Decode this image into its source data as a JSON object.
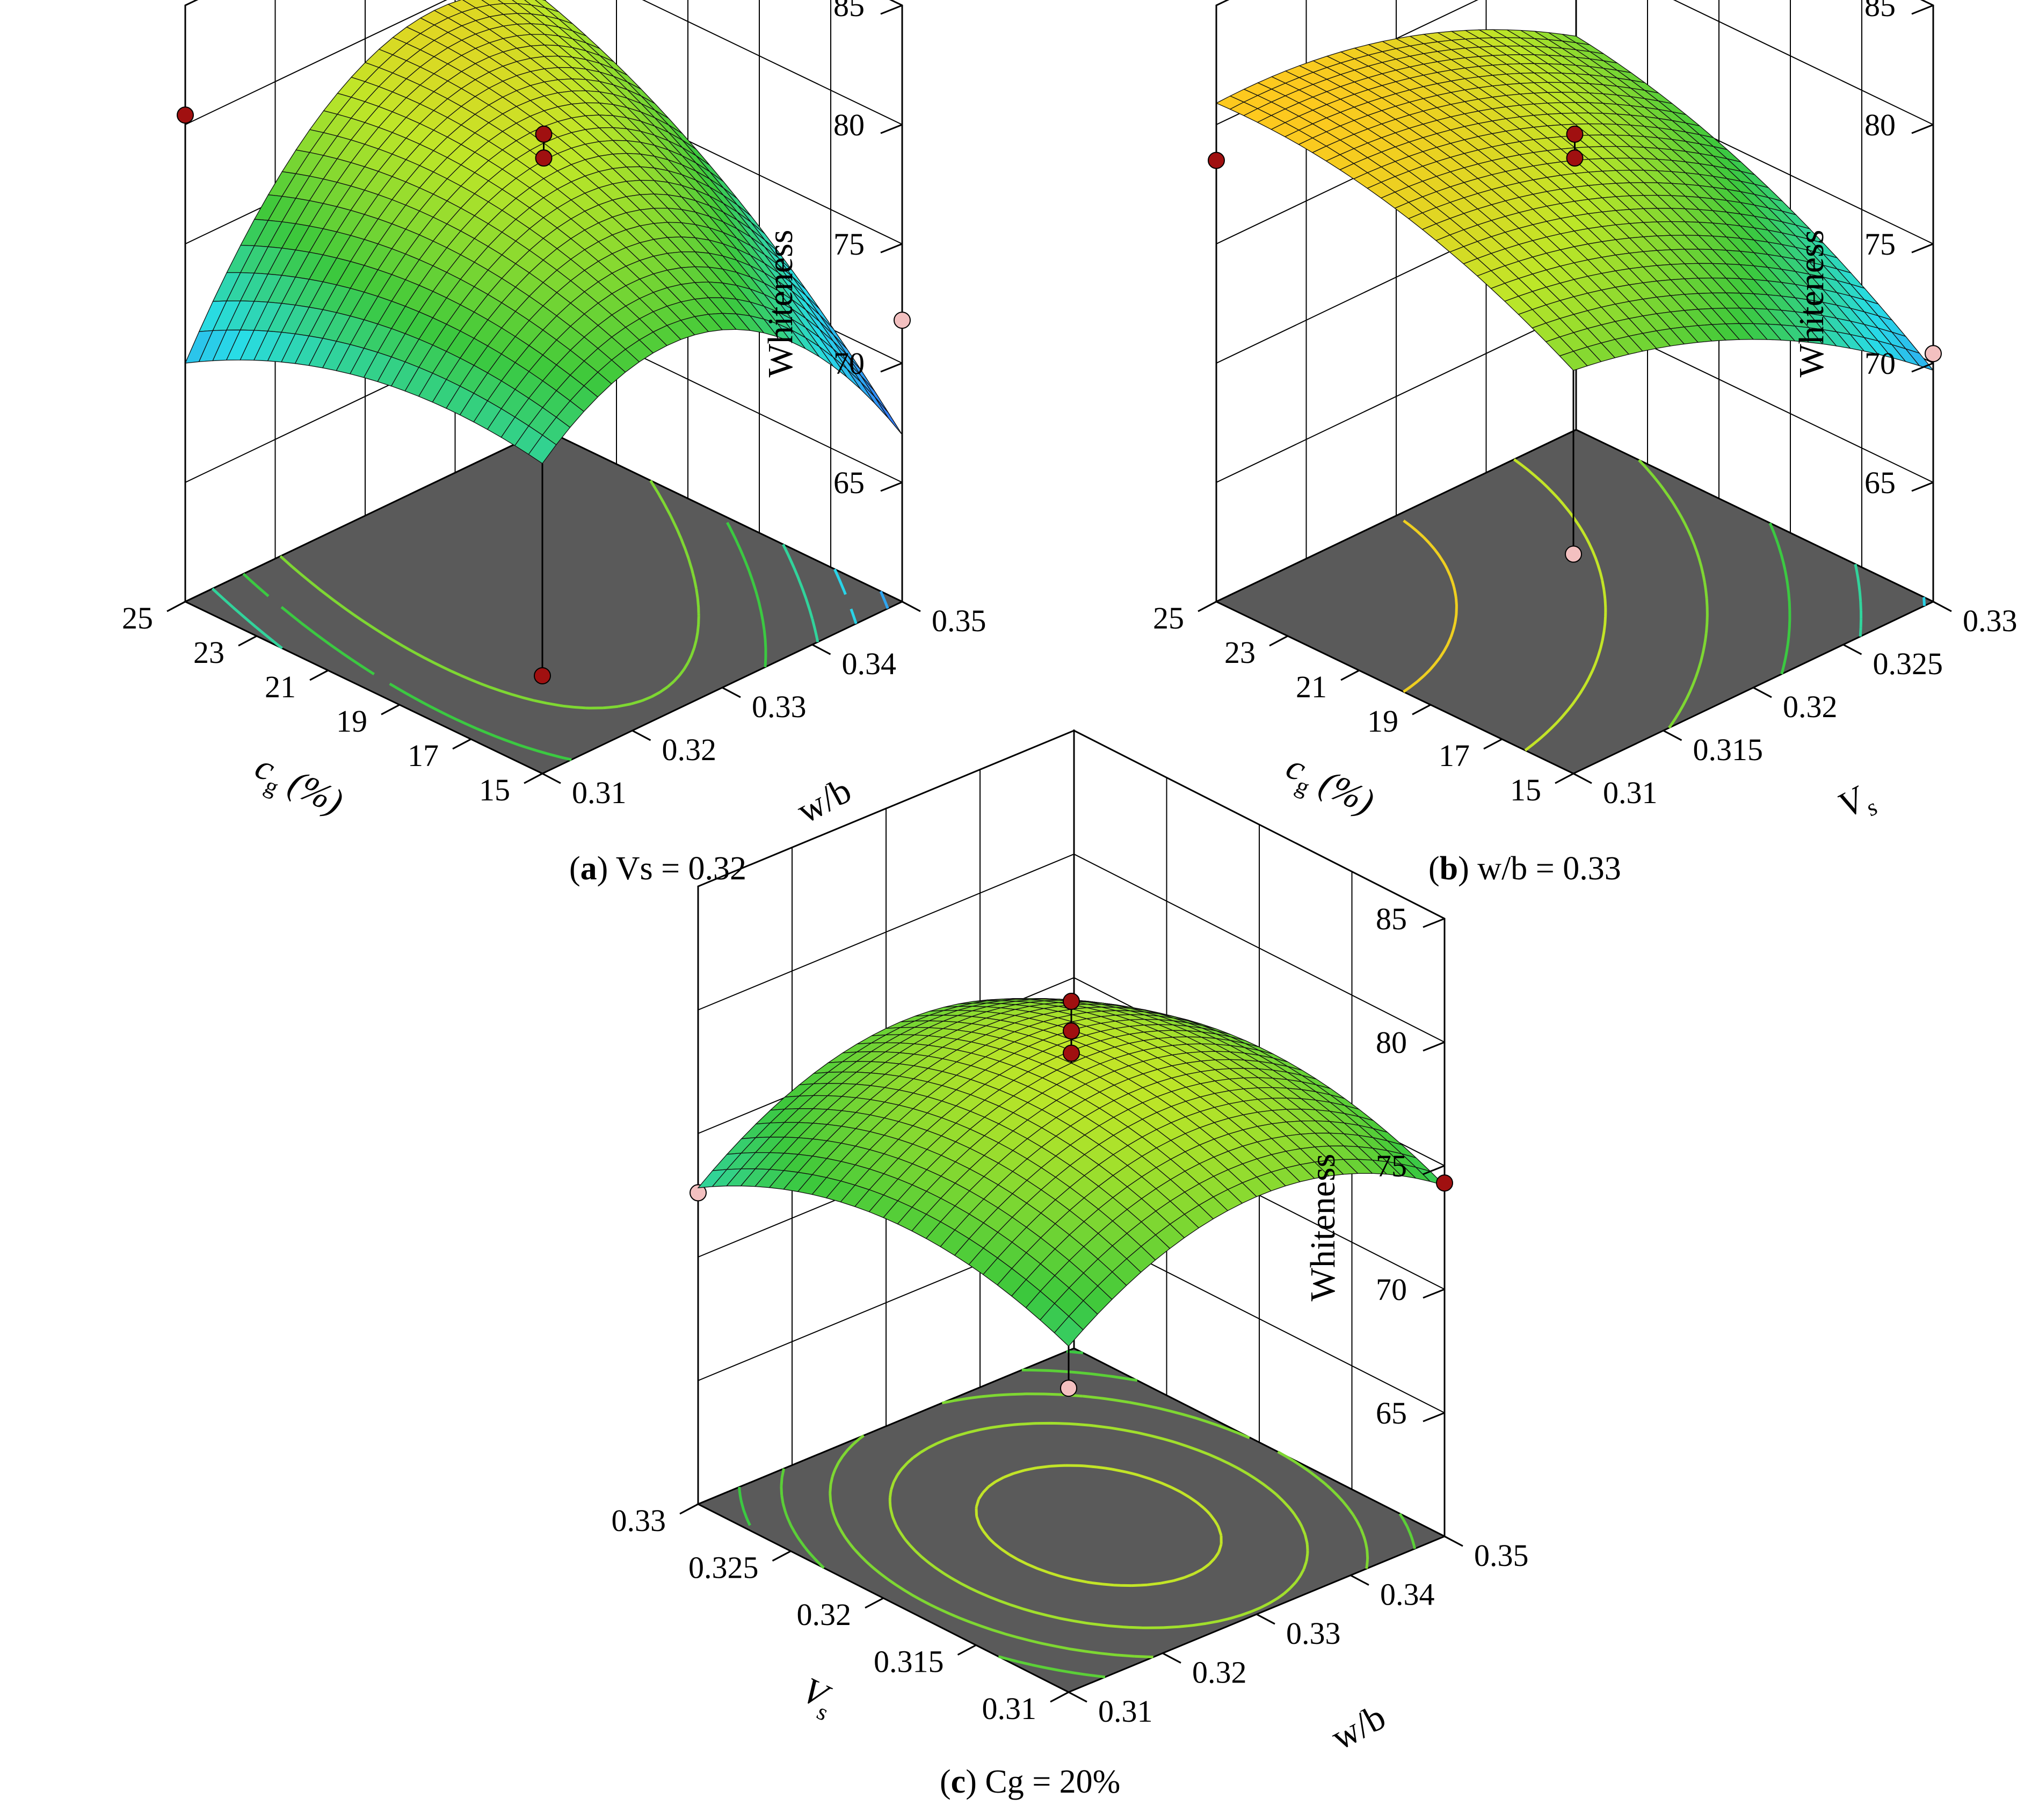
{
  "figure": {
    "captions": [
      {
        "letter": "a",
        "text": " Vs = 0.32"
      },
      {
        "letter": "b",
        "text": " w/b = 0.33"
      },
      {
        "letter": "c",
        "text": " Cg = 20%"
      }
    ]
  },
  "chart_data": [
    {
      "type": "surface",
      "title": "(a) Vs = 0.32",
      "zlabel": "Whiteness",
      "zlim": [
        60,
        85
      ],
      "zticks": [
        "65",
        "70",
        "75",
        "80",
        "85"
      ],
      "xaxis": {
        "label": "c",
        "sub": "g",
        "suffix": " (%)",
        "range": [
          15,
          25
        ],
        "ticks": [
          "15",
          "17",
          "19",
          "21",
          "23",
          "25"
        ]
      },
      "yaxis": {
        "label": "w/b",
        "sub": "",
        "suffix": "",
        "range": [
          0.31,
          0.35
        ],
        "ticks": [
          "0.31",
          "0.32",
          "0.33",
          "0.34",
          "0.35"
        ]
      },
      "model": {
        "c": 78.5,
        "a": 2.0,
        "b": 0.5,
        "ab": 3.5,
        "aa": -1.5,
        "bb": -5.0
      },
      "contour_levels": [
        66,
        68,
        70,
        72,
        74,
        76
      ],
      "design_points": [
        {
          "x": 25,
          "y": 0.31,
          "z": 80.4,
          "above": true
        },
        {
          "x": 15,
          "y": 0.31,
          "z": 64.1,
          "above": true
        },
        {
          "x": 15,
          "y": 0.35,
          "z": 71.8,
          "above": false
        },
        {
          "x": 20,
          "y": 0.33,
          "z": 79.6,
          "above": true
        },
        {
          "x": 20,
          "y": 0.33,
          "z": 78.6,
          "above": true
        }
      ]
    },
    {
      "type": "surface",
      "title": "(b) w/b = 0.33",
      "zlabel": "Whiteness",
      "zlim": [
        60,
        85
      ],
      "zticks": [
        "65",
        "70",
        "75",
        "80",
        "85"
      ],
      "xaxis": {
        "label": "c",
        "sub": "g",
        "suffix": " (%)",
        "range": [
          15,
          25
        ],
        "ticks": [
          "15",
          "17",
          "19",
          "21",
          "23",
          "25"
        ]
      },
      "yaxis": {
        "label": "V",
        "sub": "s",
        "suffix": "",
        "range": [
          0.31,
          0.33
        ],
        "ticks": [
          "0.31",
          "0.315",
          "0.32",
          "0.325",
          "0.33"
        ]
      },
      "model": {
        "c": 78.5,
        "a": 2.7,
        "b": -2.9,
        "ab": 0.7,
        "aa": -1.2,
        "bb": -1.3
      },
      "contour_levels": [
        70,
        72,
        74,
        76,
        78,
        80
      ],
      "design_points": [
        {
          "x": 25,
          "y": 0.31,
          "z": 78.5,
          "above": true
        },
        {
          "x": 15,
          "y": 0.33,
          "z": 70.4,
          "above": false
        },
        {
          "x": 15,
          "y": 0.31,
          "z": 69.2,
          "above": false
        },
        {
          "x": 25,
          "y": 0.33,
          "z": 83.3,
          "above": true
        },
        {
          "x": 20,
          "y": 0.32,
          "z": 79.6,
          "above": true
        },
        {
          "x": 20,
          "y": 0.32,
          "z": 78.6,
          "above": true
        }
      ]
    },
    {
      "type": "surface",
      "title": "(c) Cg = 20%",
      "zlabel": "Whiteness",
      "zlim": [
        60,
        85
      ],
      "zticks": [
        "65",
        "70",
        "75",
        "80",
        "85"
      ],
      "xaxis": {
        "label": "V",
        "sub": "s",
        "suffix": "",
        "range": [
          0.31,
          0.33
        ],
        "ticks": [
          "0.31",
          "0.315",
          "0.32",
          "0.325",
          "0.33"
        ]
      },
      "yaxis": {
        "label": "w/b",
        "sub": "",
        "suffix": "",
        "range": [
          0.31,
          0.35
        ],
        "ticks": [
          "0.31",
          "0.32",
          "0.33",
          "0.34",
          "0.35"
        ]
      },
      "model": {
        "c": 78.5,
        "a": -0.4,
        "b": 0.3,
        "ab": 0.2,
        "aa": -2.0,
        "bb": -2.8
      },
      "contour_levels": [
        74,
        75,
        76,
        77,
        78
      ],
      "design_points": [
        {
          "x": 0.33,
          "y": 0.31,
          "z": 72.6,
          "above": false
        },
        {
          "x": 0.31,
          "y": 0.35,
          "z": 74.3,
          "above": true
        },
        {
          "x": 0.31,
          "y": 0.31,
          "z": 72.3,
          "above": false
        },
        {
          "x": 0.32,
          "y": 0.33,
          "z": 81.0,
          "above": true
        },
        {
          "x": 0.32,
          "y": 0.33,
          "z": 79.8,
          "above": true
        },
        {
          "x": 0.32,
          "y": 0.33,
          "z": 78.9,
          "above": true
        }
      ]
    }
  ]
}
